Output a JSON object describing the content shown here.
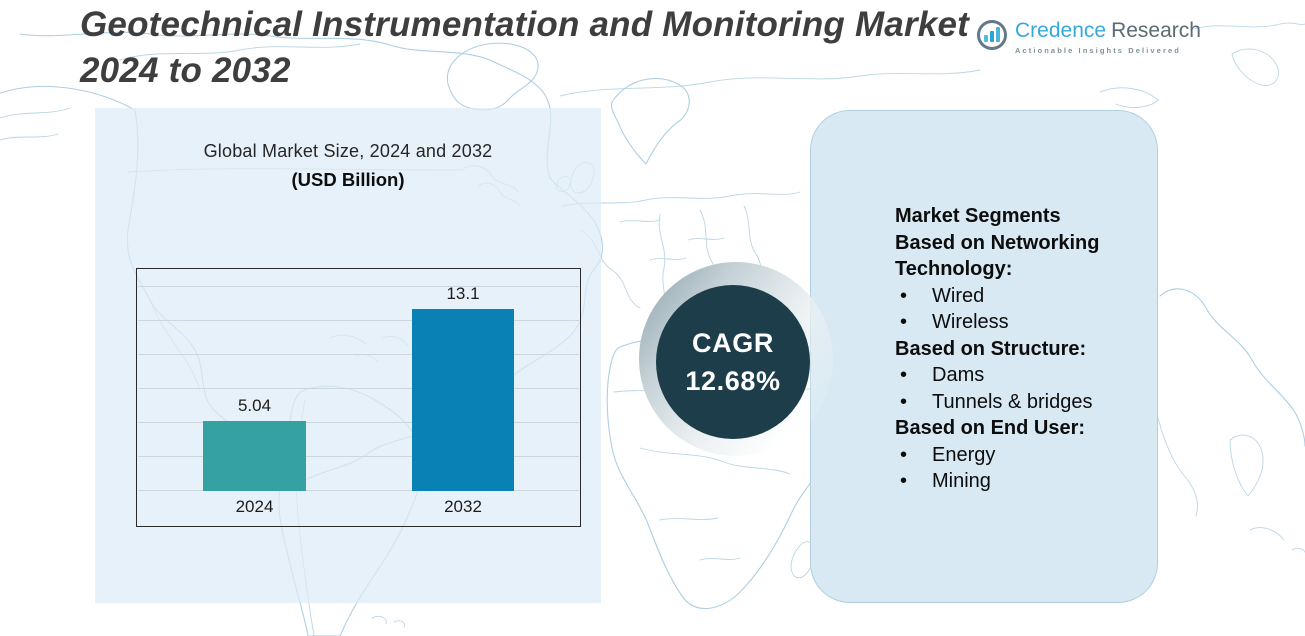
{
  "title": "Geotechnical Instrumentation and Monitoring Market 2024 to 2032",
  "logo": {
    "brand_primary": "Credence",
    "brand_secondary": "Research",
    "tagline": "Actionable Insights Delivered",
    "icon": "bar-chart-circle-icon",
    "colors": {
      "primary": "#36a9dc",
      "secondary": "#5b6b75",
      "tagline": "#7e929d"
    }
  },
  "chart_data": {
    "type": "bar",
    "title": "Global Market Size, 2024 and 2032",
    "subtitle": "(USD Billion)",
    "categories": [
      "2024",
      "2032"
    ],
    "values": [
      5.04,
      13.1
    ],
    "data_labels": [
      "5.04",
      "13.1"
    ],
    "bar_colors": [
      "#35a1a2",
      "#0a81b5"
    ],
    "xlabel": "",
    "ylabel": "",
    "ylim": [
      0,
      16
    ],
    "grid": true,
    "gridline_count": 7,
    "legend": false
  },
  "cagr_badge": {
    "label": "CAGR",
    "value": "12.68%",
    "bg_color": "#1d3d4b",
    "text_color": "#ffffff"
  },
  "segments_panel": {
    "sections": [
      {
        "heading_lines": [
          "Market Segments",
          "Based on Networking",
          "Technology:"
        ],
        "items": [
          "Wired",
          "Wireless"
        ]
      },
      {
        "heading_lines": [
          "Based on Structure:"
        ],
        "items": [
          "Dams",
          "Tunnels & bridges"
        ]
      },
      {
        "heading_lines": [
          "Based on End User:"
        ],
        "items": [
          "Energy",
          "Mining"
        ]
      }
    ]
  },
  "colors": {
    "background": "#ffffff",
    "map_lines": "#aecfe2",
    "left_panel": "#e3eef7",
    "right_panel": "#d8e9f3",
    "title_text": "#3e3e3e"
  }
}
